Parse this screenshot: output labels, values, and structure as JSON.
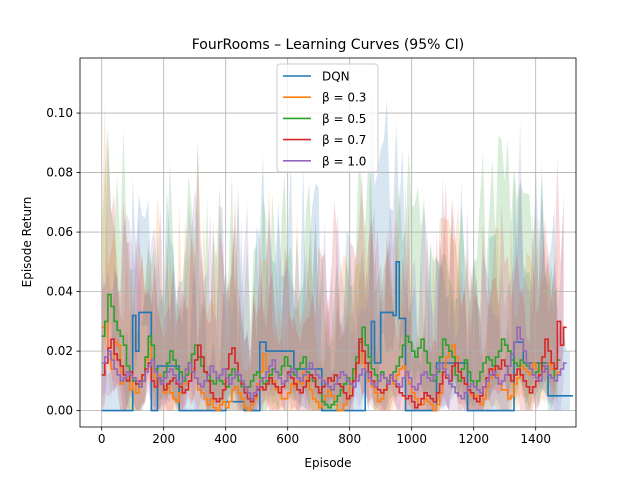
{
  "chart_data": {
    "type": "line",
    "title": "FourRooms – Learning Curves (95% CI)",
    "xlabel": "Episode",
    "ylabel": "Episode Return",
    "xlim": [
      -70,
      1530
    ],
    "ylim": [
      -0.0055,
      0.1185
    ],
    "xticks": [
      0,
      200,
      400,
      600,
      800,
      1000,
      1200,
      1400
    ],
    "yticks": [
      0.0,
      0.02,
      0.04,
      0.06,
      0.08,
      0.1
    ],
    "xtick_labels": [
      "0",
      "200",
      "400",
      "600",
      "800",
      "1000",
      "1200",
      "1400"
    ],
    "ytick_labels": [
      "0.00",
      "0.02",
      "0.04",
      "0.06",
      "0.08",
      "0.10"
    ],
    "grid": true,
    "legend_position": "upper center",
    "step": 10,
    "series": [
      {
        "name": "DQN",
        "color": "#1f77b4",
        "values": [
          0.0,
          0.0,
          0.0,
          0.0,
          0.0,
          0.0,
          0.0,
          0.0,
          0.0,
          0.0,
          0.032,
          0.02,
          0.033,
          0.033,
          0.033,
          0.033,
          0.0,
          0.0,
          0.015,
          0.015,
          0.015,
          0.015,
          0.015,
          0.015,
          0.015,
          0.0,
          0.0,
          0.0,
          0.0,
          0.0,
          0.0,
          0.0,
          0.0,
          0.0,
          0.0,
          0.0,
          0.0,
          0.0,
          0.0,
          0.0,
          0.003,
          0.003,
          0.003,
          0.003,
          0.003,
          0.003,
          0.0,
          0.0,
          0.0,
          0.0,
          0.0,
          0.023,
          0.023,
          0.02,
          0.02,
          0.02,
          0.02,
          0.02,
          0.02,
          0.02,
          0.02,
          0.02,
          0.014,
          0.014,
          0.014,
          0.014,
          0.014,
          0.014,
          0.014,
          0.014,
          0.014,
          0.0,
          0.0,
          0.0,
          0.0,
          0.0,
          0.0,
          0.0,
          0.0,
          0.0,
          0.0,
          0.0,
          0.0,
          0.0,
          0.0,
          0.016,
          0.016,
          0.03,
          0.016,
          0.016,
          0.033,
          0.033,
          0.033,
          0.033,
          0.032,
          0.05,
          0.031,
          0.031,
          0.0,
          0.0,
          0.0,
          0.0,
          0.0,
          0.0,
          0.0,
          0.0,
          0.0,
          0.0,
          0.016,
          0.016,
          0.016,
          0.016,
          0.016,
          0.016,
          0.016,
          0.016,
          0.016,
          0.016,
          0.0,
          0.0,
          0.0,
          0.0,
          0.0,
          0.0,
          0.0,
          0.0,
          0.0,
          0.0,
          0.0,
          0.0,
          0.0,
          0.0,
          0.0,
          0.023,
          0.023,
          0.023,
          0.016,
          0.016,
          0.016,
          0.016,
          0.016,
          0.016,
          0.016,
          0.016,
          0.005,
          0.005,
          0.005,
          0.005,
          0.005,
          0.005,
          0.005,
          0.005
        ]
      },
      {
        "name": "β = 0.3",
        "color": "#ff7f0e",
        "values": [
          0.028,
          0.03,
          0.019,
          0.014,
          0.023,
          0.022,
          0.009,
          0.011,
          0.013,
          0.007,
          0.01,
          0.006,
          0.009,
          0.012,
          0.017,
          0.023,
          0.014,
          0.011,
          0.012,
          0.009,
          0.006,
          0.008,
          0.006,
          0.004,
          0.003,
          0.006,
          0.009,
          0.014,
          0.016,
          0.014,
          0.011,
          0.007,
          0.006,
          0.004,
          0.002,
          0.004,
          0.001,
          0.0,
          0.002,
          0.003,
          0.001,
          0.003,
          0.007,
          0.008,
          0.006,
          0.004,
          0.001,
          0.0,
          0.002,
          0.004,
          0.009,
          0.013,
          0.019,
          0.014,
          0.011,
          0.01,
          0.007,
          0.006,
          0.004,
          0.004,
          0.006,
          0.009,
          0.008,
          0.01,
          0.009,
          0.013,
          0.01,
          0.007,
          0.004,
          0.003,
          0.001,
          0.003,
          0.005,
          0.007,
          0.005,
          0.002,
          0.0,
          0.0,
          0.002,
          0.004,
          0.01,
          0.013,
          0.016,
          0.02,
          0.016,
          0.013,
          0.01,
          0.008,
          0.006,
          0.003,
          0.004,
          0.007,
          0.009,
          0.011,
          0.009,
          0.012,
          0.014,
          0.015,
          0.012,
          0.009,
          0.006,
          0.004,
          0.002,
          0.002,
          0.004,
          0.003,
          0.002,
          0.0,
          0.002,
          0.006,
          0.012,
          0.018,
          0.02,
          0.022,
          0.018,
          0.013,
          0.011,
          0.009,
          0.007,
          0.005,
          0.004,
          0.005,
          0.002,
          0.004,
          0.008,
          0.011,
          0.014,
          0.012,
          0.009,
          0.007,
          0.007,
          0.004,
          0.005,
          0.009,
          0.011,
          0.015,
          0.014,
          0.013,
          0.012,
          0.016,
          0.014,
          0.012,
          0.013,
          0.015,
          0.016,
          0.014,
          0.012,
          0.013
        ]
      },
      {
        "name": "β = 0.5",
        "color": "#2ca02c",
        "values": [
          0.025,
          0.03,
          0.039,
          0.035,
          0.03,
          0.027,
          0.025,
          0.022,
          0.015,
          0.012,
          0.01,
          0.009,
          0.008,
          0.01,
          0.018,
          0.025,
          0.022,
          0.014,
          0.011,
          0.01,
          0.013,
          0.016,
          0.02,
          0.017,
          0.014,
          0.013,
          0.01,
          0.012,
          0.016,
          0.019,
          0.022,
          0.018,
          0.015,
          0.013,
          0.012,
          0.01,
          0.009,
          0.011,
          0.01,
          0.009,
          0.008,
          0.012,
          0.014,
          0.012,
          0.01,
          0.008,
          0.006,
          0.008,
          0.01,
          0.012,
          0.013,
          0.011,
          0.009,
          0.01,
          0.012,
          0.014,
          0.013,
          0.012,
          0.015,
          0.018,
          0.015,
          0.013,
          0.012,
          0.014,
          0.016,
          0.018,
          0.013,
          0.012,
          0.01,
          0.008,
          0.006,
          0.003,
          0.002,
          0.001,
          0.002,
          0.003,
          0.005,
          0.007,
          0.009,
          0.011,
          0.009,
          0.014,
          0.018,
          0.023,
          0.028,
          0.022,
          0.018,
          0.014,
          0.012,
          0.01,
          0.013,
          0.011,
          0.01,
          0.012,
          0.013,
          0.015,
          0.018,
          0.022,
          0.025,
          0.023,
          0.02,
          0.018,
          0.021,
          0.024,
          0.02,
          0.016,
          0.012,
          0.01,
          0.013,
          0.018,
          0.024,
          0.022,
          0.02,
          0.018,
          0.012,
          0.01,
          0.014,
          0.017,
          0.013,
          0.01,
          0.008,
          0.01,
          0.013,
          0.016,
          0.018,
          0.017,
          0.015,
          0.018,
          0.02,
          0.024,
          0.022,
          0.02,
          0.017,
          0.016,
          0.015,
          0.017,
          0.016,
          0.015,
          0.014,
          0.012,
          0.013,
          0.016,
          0.015,
          0.014,
          0.012,
          0.011,
          0.014,
          0.017
        ]
      },
      {
        "name": "β = 0.7",
        "color": "#d62728",
        "values": [
          0.012,
          0.016,
          0.021,
          0.024,
          0.019,
          0.017,
          0.015,
          0.012,
          0.01,
          0.013,
          0.011,
          0.009,
          0.01,
          0.012,
          0.014,
          0.016,
          0.01,
          0.008,
          0.011,
          0.009,
          0.007,
          0.009,
          0.01,
          0.011,
          0.009,
          0.008,
          0.006,
          0.007,
          0.01,
          0.013,
          0.017,
          0.022,
          0.018,
          0.013,
          0.01,
          0.006,
          0.004,
          0.003,
          0.004,
          0.007,
          0.014,
          0.019,
          0.021,
          0.016,
          0.012,
          0.009,
          0.006,
          0.004,
          0.003,
          0.005,
          0.007,
          0.008,
          0.007,
          0.009,
          0.011,
          0.009,
          0.008,
          0.006,
          0.008,
          0.01,
          0.013,
          0.011,
          0.009,
          0.007,
          0.006,
          0.008,
          0.01,
          0.012,
          0.011,
          0.008,
          0.006,
          0.008,
          0.009,
          0.011,
          0.01,
          0.012,
          0.009,
          0.008,
          0.006,
          0.004,
          0.005,
          0.01,
          0.016,
          0.024,
          0.02,
          0.016,
          0.013,
          0.01,
          0.008,
          0.007,
          0.006,
          0.007,
          0.009,
          0.012,
          0.01,
          0.008,
          0.006,
          0.005,
          0.004,
          0.005,
          0.003,
          0.001,
          0.002,
          0.004,
          0.006,
          0.005,
          0.004,
          0.003,
          0.006,
          0.009,
          0.013,
          0.011,
          0.01,
          0.015,
          0.016,
          0.013,
          0.011,
          0.009,
          0.007,
          0.006,
          0.004,
          0.003,
          0.005,
          0.008,
          0.011,
          0.014,
          0.012,
          0.015,
          0.014,
          0.017,
          0.015,
          0.012,
          0.01,
          0.012,
          0.014,
          0.012,
          0.01,
          0.008,
          0.006,
          0.008,
          0.01,
          0.012,
          0.018,
          0.024,
          0.02,
          0.016,
          0.014,
          0.03,
          0.022,
          0.028
        ]
      },
      {
        "name": "β = 1.0",
        "color": "#9467bd",
        "values": [
          0.016,
          0.018,
          0.02,
          0.017,
          0.014,
          0.012,
          0.01,
          0.011,
          0.013,
          0.012,
          0.011,
          0.01,
          0.008,
          0.01,
          0.013,
          0.015,
          0.017,
          0.013,
          0.011,
          0.009,
          0.011,
          0.013,
          0.014,
          0.012,
          0.01,
          0.009,
          0.011,
          0.014,
          0.016,
          0.013,
          0.011,
          0.009,
          0.008,
          0.01,
          0.012,
          0.015,
          0.013,
          0.011,
          0.012,
          0.014,
          0.011,
          0.009,
          0.011,
          0.013,
          0.012,
          0.01,
          0.008,
          0.006,
          0.004,
          0.006,
          0.008,
          0.01,
          0.011,
          0.013,
          0.015,
          0.017,
          0.013,
          0.011,
          0.009,
          0.01,
          0.012,
          0.014,
          0.013,
          0.011,
          0.01,
          0.012,
          0.014,
          0.016,
          0.014,
          0.012,
          0.011,
          0.01,
          0.009,
          0.008,
          0.007,
          0.009,
          0.011,
          0.013,
          0.012,
          0.01,
          0.009,
          0.008,
          0.01,
          0.012,
          0.014,
          0.013,
          0.011,
          0.009,
          0.008,
          0.01,
          0.012,
          0.011,
          0.009,
          0.012,
          0.01,
          0.009,
          0.008,
          0.011,
          0.013,
          0.011,
          0.008,
          0.007,
          0.009,
          0.012,
          0.013,
          0.011,
          0.01,
          0.012,
          0.014,
          0.016,
          0.014,
          0.012,
          0.009,
          0.008,
          0.006,
          0.005,
          0.004,
          0.006,
          0.008,
          0.009,
          0.008,
          0.007,
          0.006,
          0.008,
          0.01,
          0.012,
          0.013,
          0.011,
          0.009,
          0.01,
          0.012,
          0.015,
          0.019,
          0.023,
          0.028,
          0.024,
          0.02,
          0.016,
          0.014,
          0.012,
          0.011,
          0.01,
          0.013,
          0.015,
          0.012,
          0.011,
          0.01,
          0.012,
          0.014,
          0.016
        ]
      }
    ]
  }
}
